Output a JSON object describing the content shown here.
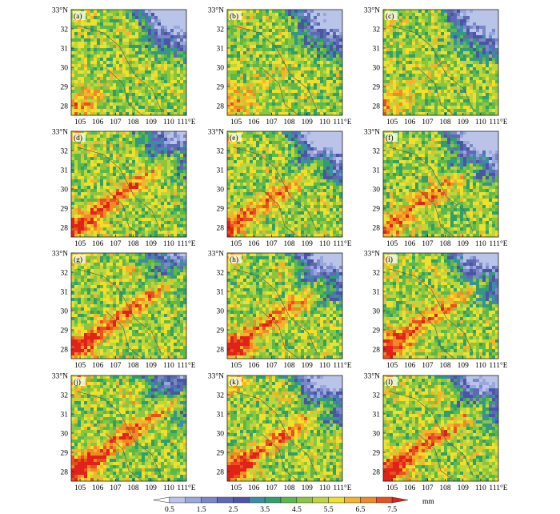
{
  "figure": {
    "panel_labels": [
      "(a)",
      "(b)",
      "(c)",
      "(d)",
      "(e)",
      "(f)",
      "(g)",
      "(h)",
      "(i)",
      "(j)",
      "(k)",
      "(l)"
    ]
  },
  "chart_data": {
    "type": "heatmap",
    "title": "",
    "x_axis": {
      "range": [
        104.5,
        111
      ],
      "ticks": [
        105,
        106,
        107,
        108,
        109,
        110,
        111
      ],
      "tick_labels": [
        "105",
        "106",
        "107",
        "108",
        "109",
        "110",
        "111°E"
      ]
    },
    "y_axis": {
      "range": [
        27.5,
        33
      ],
      "ticks": [
        28,
        29,
        30,
        31,
        32,
        33
      ],
      "tick_labels": [
        "28",
        "29",
        "30",
        "31",
        "32",
        "33°N"
      ]
    },
    "colorbar": {
      "orientation": "horizontal",
      "unit": "mm",
      "tick_labels": [
        "0.5",
        "1.5",
        "2.5",
        "3.5",
        "4.5",
        "5.5",
        "6.5",
        "7.5"
      ],
      "levels": [
        0.5,
        1,
        1.5,
        2,
        2.5,
        3,
        3.5,
        4,
        4.5,
        5,
        5.5,
        6,
        6.5,
        7,
        7.5
      ],
      "colors": [
        "#ffffff",
        "#b9c4e8",
        "#98a8dc",
        "#7b88c8",
        "#5e69b4",
        "#4a55a4",
        "#3c8ca8",
        "#2fa06c",
        "#5cb84a",
        "#8cc63e",
        "#bfd63a",
        "#f0e02c",
        "#f5b22a",
        "#f08a22",
        "#e8501e",
        "#e02218"
      ]
    },
    "panels": [
      {
        "label": "(a)",
        "seed": 11,
        "blue": 0.62,
        "red": 0.55,
        "band": 0.15
      },
      {
        "label": "(b)",
        "seed": 23,
        "blue": 0.58,
        "red": 0.45,
        "band": 0.2
      },
      {
        "label": "(c)",
        "seed": 37,
        "blue": 0.65,
        "red": 0.4,
        "band": 0.25
      },
      {
        "label": "(d)",
        "seed": 41,
        "blue": 0.4,
        "red": 0.55,
        "band": 0.85
      },
      {
        "label": "(e)",
        "seed": 53,
        "blue": 0.7,
        "red": 0.45,
        "band": 0.75
      },
      {
        "label": "(f)",
        "seed": 67,
        "blue": 0.72,
        "red": 0.4,
        "band": 0.7
      },
      {
        "label": "(g)",
        "seed": 71,
        "blue": 0.3,
        "red": 0.65,
        "band": 0.85
      },
      {
        "label": "(h)",
        "seed": 83,
        "blue": 0.55,
        "red": 0.7,
        "band": 0.8
      },
      {
        "label": "(i)",
        "seed": 97,
        "blue": 0.55,
        "red": 0.65,
        "band": 0.8
      },
      {
        "label": "(j)",
        "seed": 101,
        "blue": 0.3,
        "red": 0.8,
        "band": 0.95
      },
      {
        "label": "(k)",
        "seed": 113,
        "blue": 0.55,
        "red": 0.85,
        "band": 0.85
      },
      {
        "label": "(l)",
        "seed": 127,
        "blue": 0.5,
        "red": 0.8,
        "band": 0.85
      }
    ]
  }
}
